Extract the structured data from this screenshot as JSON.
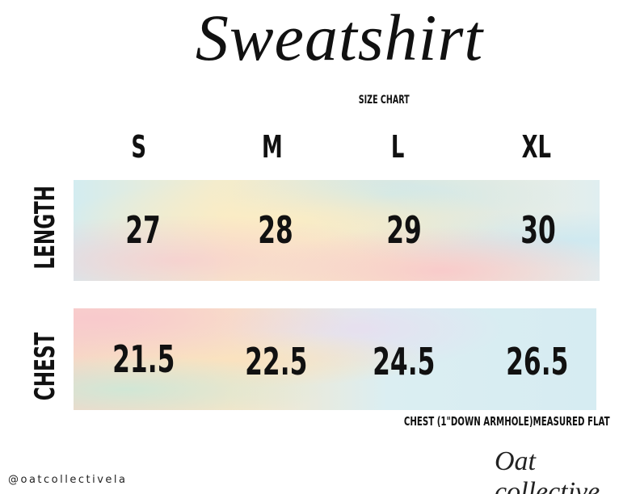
{
  "header": {
    "title": "Sweatshirt",
    "subtitle": "SIZE CHART"
  },
  "sizes": [
    "S",
    "M",
    "L",
    "XL"
  ],
  "rows": [
    {
      "label": "LENGTH",
      "values": [
        "27",
        "28",
        "29",
        "30"
      ]
    },
    {
      "label": "CHEST",
      "values": [
        "21.5",
        "22.5",
        "24.5",
        "26.5"
      ]
    }
  ],
  "note": "CHEST (1\"DOWN ARMHOLE)MEASURED FLAT",
  "footer": {
    "handle": "@oatcollectivela",
    "logo": "Oat collective"
  }
}
